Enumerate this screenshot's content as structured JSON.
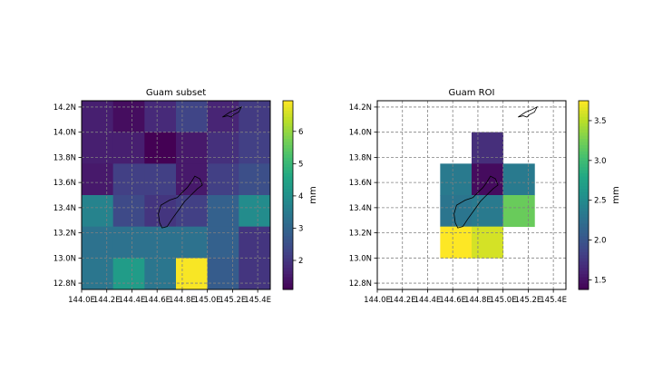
{
  "figure": {
    "background": "#ffffff"
  },
  "chart_data": [
    {
      "type": "heatmap",
      "title": "Guam subset",
      "colorbar_label": "mm",
      "colormap": "viridis",
      "vmin": 1.1,
      "vmax": 6.95,
      "colorbar_ticks": [
        "2",
        "3",
        "4",
        "5",
        "6"
      ],
      "colorbar_tick_values": [
        2,
        3,
        4,
        5,
        6
      ],
      "x_ticks": [
        "144.0E",
        "144.2E",
        "144.4E",
        "144.6E",
        "144.8E",
        "145.0E",
        "145.2E",
        "145.4E"
      ],
      "x_tick_values": [
        144.0,
        144.2,
        144.4,
        144.6,
        144.8,
        145.0,
        145.2,
        145.4
      ],
      "y_ticks": [
        "12.8N",
        "13.0N",
        "13.2N",
        "13.4N",
        "13.6N",
        "13.8N",
        "14.0N",
        "14.2N"
      ],
      "y_tick_values": [
        12.8,
        13.0,
        13.2,
        13.4,
        13.6,
        13.8,
        14.0,
        14.2
      ],
      "xlim": [
        144.0,
        145.5
      ],
      "ylim": [
        12.75,
        14.25
      ],
      "grid": true,
      "cell_lon_edges": [
        144.0,
        144.25,
        144.5,
        144.75,
        145.0,
        145.25,
        145.5
      ],
      "cell_lat_edges": [
        12.75,
        13.0,
        13.25,
        13.5,
        13.75,
        14.0,
        14.25
      ],
      "values": [
        [
          1.6,
          1.3,
          1.8,
          2.3,
          1.7,
          2.1
        ],
        [
          1.6,
          1.6,
          1.1,
          1.5,
          1.9,
          2.2
        ],
        [
          1.5,
          2.2,
          2.2,
          1.5,
          2.2,
          2.5
        ],
        [
          3.7,
          2.4,
          2.0,
          2.2,
          2.9,
          3.9
        ],
        [
          3.3,
          3.3,
          3.3,
          3.3,
          2.9,
          2.0
        ],
        [
          3.4,
          4.3,
          3.4,
          6.9,
          2.8,
          2.0
        ]
      ]
    },
    {
      "type": "heatmap",
      "title": "Guam ROI",
      "colorbar_label": "mm",
      "colormap": "viridis",
      "vmin": 1.38,
      "vmax": 3.75,
      "colorbar_ticks": [
        "1.5",
        "2.0",
        "2.5",
        "3.0",
        "3.5"
      ],
      "colorbar_tick_values": [
        1.5,
        2.0,
        2.5,
        3.0,
        3.5
      ],
      "x_ticks": [
        "144.0E",
        "144.2E",
        "144.4E",
        "144.6E",
        "144.8E",
        "145.0E",
        "145.2E",
        "145.4E"
      ],
      "x_tick_values": [
        144.0,
        144.2,
        144.4,
        144.6,
        144.8,
        145.0,
        145.2,
        145.4
      ],
      "y_ticks": [
        "12.8N",
        "13.0N",
        "13.2N",
        "13.4N",
        "13.6N",
        "13.8N",
        "14.0N",
        "14.2N"
      ],
      "y_tick_values": [
        12.8,
        13.0,
        13.2,
        13.4,
        13.6,
        13.8,
        14.0,
        14.2
      ],
      "xlim": [
        144.0,
        145.5
      ],
      "ylim": [
        12.75,
        14.25
      ],
      "grid": true,
      "cell_lon_edges": [
        144.0,
        144.25,
        144.5,
        144.75,
        145.0,
        145.25,
        145.5
      ],
      "cell_lat_edges": [
        12.75,
        13.0,
        13.25,
        13.5,
        13.75,
        14.0,
        14.25
      ],
      "values": [
        [
          null,
          null,
          null,
          null,
          null,
          null
        ],
        [
          null,
          null,
          null,
          1.7,
          null,
          null
        ],
        [
          null,
          null,
          2.35,
          1.45,
          2.35,
          null
        ],
        [
          null,
          null,
          2.3,
          2.35,
          3.2,
          null
        ],
        [
          null,
          null,
          3.75,
          3.6,
          null,
          null
        ],
        [
          null,
          null,
          null,
          null,
          null,
          null
        ]
      ]
    }
  ]
}
